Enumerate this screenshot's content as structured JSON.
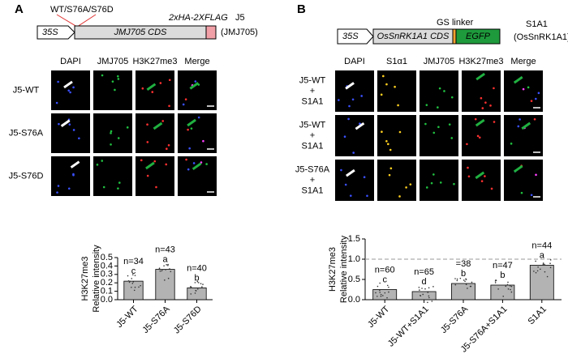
{
  "panel_a": {
    "letter": "A",
    "construct": {
      "promoter": "35S",
      "cds": "JMJ705 CDS",
      "tag": "2xHA-2XFLAG",
      "name": "J5",
      "full_name": "(JMJ705)",
      "mutations": "WT/S76A/S76D"
    },
    "columns": [
      "DAPI",
      "JMJ705",
      "H3K27me3",
      "Merge"
    ],
    "rows": [
      [
        "J5-WT"
      ],
      [
        "J5-S76A"
      ],
      [
        "J5-S76D"
      ]
    ]
  },
  "panel_b": {
    "letter": "B",
    "construct": {
      "promoter": "35S",
      "cds": "OsSnRK1A1 CDS",
      "linker": "GS linker",
      "tag": "EGFP",
      "name": "S1A1",
      "full_name": "(OsSnRK1A1)"
    },
    "columns": [
      "DAPI",
      "S1α1",
      "JMJ705",
      "H3K27me3",
      "Merge"
    ],
    "rows": [
      [
        "J5-WT",
        "+",
        "S1A1"
      ],
      [
        "J5-WT",
        "+",
        "S1A1"
      ],
      [
        "J5-S76A",
        "+",
        "S1A1"
      ]
    ]
  },
  "chart_data": [
    {
      "type": "bar",
      "ylabel": [
        "H3K27me3",
        "Relative intensity"
      ],
      "categories": [
        "J5-WT",
        "J5-S76A",
        "J5-S76D"
      ],
      "values": [
        0.22,
        0.36,
        0.14
      ],
      "annotations": [
        {
          "n": "n=34",
          "letter": "c"
        },
        {
          "n": "n=43",
          "letter": "a"
        },
        {
          "n": "n=40",
          "letter": "b"
        }
      ],
      "color": "#b3b3b3",
      "ylim": [
        0,
        0.5
      ],
      "yticks": [
        {
          "value": 0,
          "label": "0.0"
        },
        0.1,
        0.2,
        0.3,
        0.4,
        0.5
      ]
    },
    {
      "type": "bar",
      "ylabel": [
        "H3K27me3",
        "Relative intensity"
      ],
      "categories": [
        "J5-WT",
        "J5-WT+S1A1",
        "J5-S76A",
        "J5-S76A+S1A1",
        "S1A1"
      ],
      "values": [
        0.25,
        0.2,
        0.4,
        0.36,
        0.85
      ],
      "annotations": [
        {
          "n": "n=60",
          "letter": "c"
        },
        {
          "n": "n=65",
          "letter": "d"
        },
        {
          "n": "=38",
          "letter": "b"
        },
        {
          "n": "n=47",
          "letter": "b"
        },
        {
          "n": "n=44",
          "letter": "a"
        }
      ],
      "color": "#b3b3b3",
      "ylim": [
        0,
        1.5
      ],
      "yticks": [
        {
          "value": 0,
          "label": "0.0"
        },
        0.5,
        {
          "value": 1,
          "label": "1.0"
        },
        1.5
      ],
      "refline": 1
    }
  ]
}
